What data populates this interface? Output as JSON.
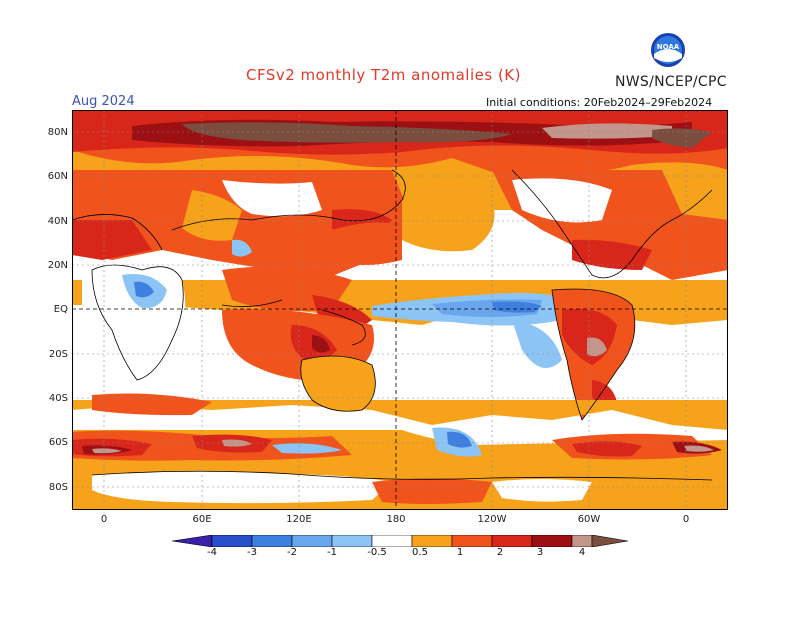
{
  "header": {
    "title": "CFSv2 monthly T2m anomalies (K)",
    "agency": "NWS/NCEP/CPC",
    "month": "Aug 2024",
    "initial_conditions": "Initial conditions: 20Feb2024–29Feb2024",
    "logo_text": "NOAA"
  },
  "axes": {
    "lat_labels": [
      "80N",
      "60N",
      "40N",
      "20N",
      "EQ",
      "20S",
      "40S",
      "60S",
      "80S"
    ],
    "lon_labels": [
      "0",
      "60E",
      "120E",
      "180",
      "120W",
      "60W",
      "0"
    ]
  },
  "colorbar": {
    "labels": [
      "-4",
      "-3",
      "-2",
      "-1",
      "-0.5",
      "0.5",
      "1",
      "2",
      "3",
      "4"
    ],
    "colors": [
      "#3a1fa8",
      "#2a4fcc",
      "#3f7fe0",
      "#6aa6ee",
      "#8cc4f5",
      "#ffffff",
      "#f7a21b",
      "#f0531c",
      "#d8261a",
      "#9c0f12",
      "#c4958a",
      "#7a4d3e"
    ]
  },
  "map_colors": {
    "ocean_neutral": "#ffffff",
    "warm1": "#f7a21b",
    "warm2": "#f0531c",
    "warm3": "#d8261a",
    "warm4": "#9c0f12",
    "warm5": "#c4958a",
    "warm6": "#7a4d3e",
    "cool1": "#8cc4f5",
    "cool2": "#6aa6ee",
    "cool3": "#3f7fe0",
    "grid": "#888888",
    "coast": "#000000"
  }
}
